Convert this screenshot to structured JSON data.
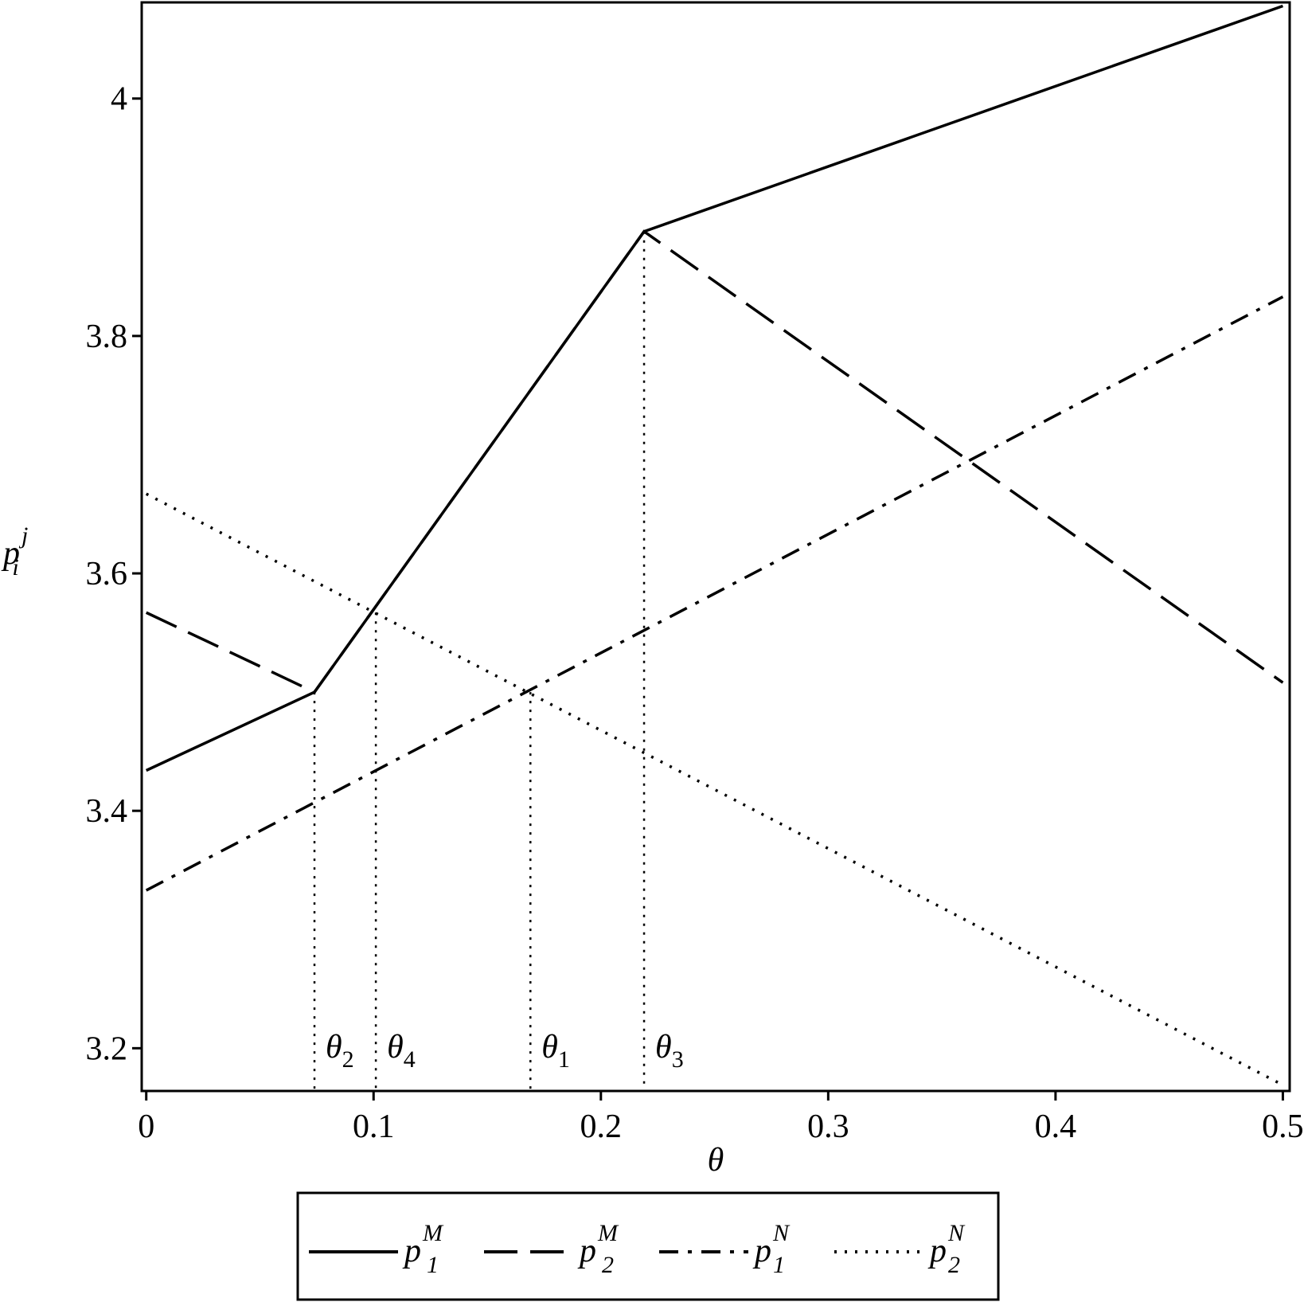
{
  "chart_data": {
    "type": "line",
    "x_label": "θ",
    "y_label": {
      "base": "p",
      "sub": "i",
      "sup": "j"
    },
    "xlim": [
      -0.002,
      0.503
    ],
    "ylim": [
      3.164,
      4.081
    ],
    "xticks": [
      0,
      0.1,
      0.2,
      0.3,
      0.4,
      0.5
    ],
    "yticks": [
      3.2,
      3.4,
      3.6,
      3.8,
      4
    ],
    "series": [
      {
        "name": "p",
        "name_sub": "1",
        "name_sup": "M",
        "color": "#000000",
        "dash": "solid",
        "x": [
          0,
          0.074,
          0.219,
          0.5
        ],
        "values": [
          3.434,
          3.5,
          3.888,
          4.078
        ]
      },
      {
        "name": "p",
        "name_sub": "2",
        "name_sup": "M",
        "color": "#000000",
        "dash": "dashed",
        "x": [
          0,
          0.074,
          0.219,
          0.5
        ],
        "values": [
          3.567,
          3.5,
          3.888,
          3.508
        ]
      },
      {
        "name": "p",
        "name_sub": "1",
        "name_sup": "N",
        "color": "#000000",
        "dash": "dashdot",
        "x": [
          0,
          0.5
        ],
        "values": [
          3.333,
          3.833
        ]
      },
      {
        "name": "p",
        "name_sub": "2",
        "name_sup": "N",
        "color": "#000000",
        "dash": "dotted",
        "x": [
          0,
          0.5
        ],
        "values": [
          3.667,
          3.169
        ]
      }
    ],
    "annotations": [
      {
        "label": "θ",
        "sub": "2",
        "x": 0.074,
        "y": 3.5
      },
      {
        "label": "θ",
        "sub": "4",
        "x": 0.101,
        "y": 3.567
      },
      {
        "label": "θ",
        "sub": "1",
        "x": 0.169,
        "y": 3.5
      },
      {
        "label": "θ",
        "sub": "3",
        "x": 0.219,
        "y": 3.888
      }
    ],
    "legend": "bottom"
  }
}
